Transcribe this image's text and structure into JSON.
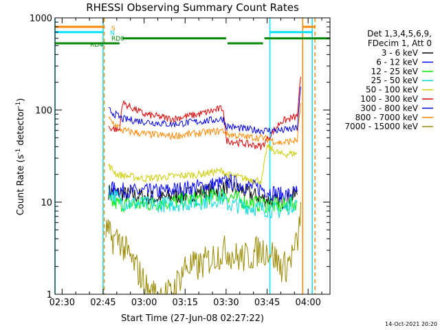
{
  "chart_data": {
    "type": "line",
    "title": "RHESSI Observing Summary Count Rates",
    "xlabel": "Start Time (27-Jun-08 02:27:22)",
    "ylabel": "Count Rate (s",
    "ylabel_sup1": "-1",
    "ylabel_mid": " detector",
    "ylabel_sup2": "-1",
    "ylabel_end": ")",
    "yscale": "log",
    "ylim": [
      1,
      1000
    ],
    "xlim_min": [
      147.4,
      248
    ],
    "x_ticks": [
      {
        "t": 150,
        "label": "02:30"
      },
      {
        "t": 165,
        "label": "02:45"
      },
      {
        "t": 180,
        "label": "03:00"
      },
      {
        "t": 195,
        "label": "03:15"
      },
      {
        "t": 210,
        "label": "03:30"
      },
      {
        "t": 225,
        "label": "03:45"
      },
      {
        "t": 240,
        "label": "04:00"
      }
    ],
    "y_ticks": [
      {
        "v": 1,
        "label": "1"
      },
      {
        "v": 10,
        "label": "10"
      },
      {
        "v": 100,
        "label": "100"
      },
      {
        "v": 1000,
        "label": "1000"
      }
    ],
    "legend_header": [
      "Det 1,3,4,5,6,9,",
      "FDecim 1, Att 0"
    ],
    "legend_position": "right",
    "timestamp": "14-Oct-2021 20:20",
    "series": [
      {
        "name": "3 - 6 keV",
        "color": "#000000",
        "x": [
          167,
          175,
          185,
          195,
          202,
          209,
          210,
          217,
          223,
          230,
          233,
          236
        ],
        "y": [
          13,
          12,
          11,
          12,
          13,
          14,
          15,
          13,
          11,
          10,
          11,
          12
        ]
      },
      {
        "name": "6 - 12 keV",
        "color": "#0000ff",
        "x": [
          167,
          175,
          185,
          195,
          202,
          209,
          210,
          217,
          223,
          230,
          233,
          236
        ],
        "y": [
          14,
          13,
          13,
          14,
          15,
          16,
          17,
          15,
          14,
          12,
          12,
          13
        ]
      },
      {
        "name": "12 - 25 keV",
        "color": "#00ee00",
        "x": [
          167,
          172,
          180,
          190,
          200,
          209,
          210,
          217,
          223,
          230,
          233,
          236
        ],
        "y": [
          10,
          9.5,
          9.5,
          10,
          11,
          12,
          12,
          10,
          9.5,
          9,
          9.5,
          10
        ]
      },
      {
        "name": "25 - 50 keV",
        "color": "#00dddd",
        "x": [
          167,
          172,
          180,
          190,
          200,
          209,
          210,
          217,
          223,
          230,
          233,
          236
        ],
        "y": [
          13,
          10,
          9.5,
          9.5,
          10,
          11,
          9.5,
          9,
          8.5,
          8,
          9,
          10
        ]
      },
      {
        "name": "50 - 100 keV",
        "color": "#cccc00",
        "x": [
          167,
          170,
          180,
          190,
          200,
          209,
          210,
          217,
          223,
          225,
          230,
          236
        ],
        "y": [
          25,
          20,
          18,
          19,
          20,
          22,
          20,
          18,
          17,
          40,
          33,
          34
        ]
      },
      {
        "name": "100 - 300 keV",
        "color": "#dd0000",
        "x": [
          167,
          171,
          172,
          180,
          190,
          200,
          209,
          210,
          217,
          223,
          230,
          236,
          237.3
        ],
        "y": [
          65,
          60,
          120,
          90,
          80,
          90,
          105,
          47,
          43,
          40,
          75,
          85,
          230
        ]
      },
      {
        "name": "300 - 800 keV",
        "color": "#0000dd",
        "x": [
          167,
          172,
          180,
          190,
          200,
          209,
          210,
          217,
          223,
          230,
          236,
          237.3
        ],
        "y": [
          100,
          80,
          75,
          70,
          75,
          80,
          67,
          62,
          60,
          60,
          63,
          180
        ]
      },
      {
        "name": "800 - 7000 keV",
        "color": "#ff8800",
        "x": [
          167,
          172,
          180,
          190,
          200,
          209,
          210,
          217,
          223,
          230,
          236,
          237.3
        ],
        "y": [
          80,
          60,
          55,
          52,
          56,
          60,
          55,
          51,
          50,
          44,
          47,
          120
        ]
      },
      {
        "name": "7000 - 15000 keV",
        "color": "#998800",
        "x": [
          166,
          168,
          171,
          173,
          177,
          182,
          190,
          195,
          200,
          205,
          210,
          214,
          218,
          222,
          226,
          230,
          232,
          235,
          236.5,
          237.3
        ],
        "y": [
          5,
          4,
          4,
          3,
          2,
          1,
          1,
          2,
          2,
          2.5,
          3,
          2.5,
          2.5,
          3,
          3,
          2,
          2,
          3,
          4,
          10
        ]
      }
    ],
    "state_bars": [
      {
        "name": "S",
        "label": "S",
        "color": "#ff8800",
        "v": 800,
        "segments": [
          [
            147.4,
            165.4
          ],
          [
            238,
            242.5
          ]
        ]
      },
      {
        "name": "N",
        "label": "N",
        "color": "#00e0ff",
        "v": 700,
        "segments": [
          [
            147.4,
            165
          ],
          [
            226,
            241.5
          ]
        ]
      },
      {
        "name": "RD0",
        "label": "RD0",
        "color": "#008800",
        "v": 600,
        "segments": [
          [
            172,
            210
          ],
          [
            224,
            248
          ]
        ]
      },
      {
        "name": "RD4",
        "label": "RD4",
        "color": "#008800",
        "v": 530,
        "segments": [
          [
            147.4,
            171
          ],
          [
            210.5,
            223.5
          ]
        ]
      }
    ],
    "state_lines": [
      {
        "t": 147.4,
        "color": "#00e0ff",
        "dashed": false
      },
      {
        "t": 165,
        "color": "#00e0ff",
        "dashed": false
      },
      {
        "t": 165.4,
        "color": "#ff8800",
        "dashed": true
      },
      {
        "t": 226,
        "color": "#00e0ff",
        "dashed": false
      },
      {
        "t": 238,
        "color": "#ff8800",
        "dashed": false
      },
      {
        "t": 241.5,
        "color": "#00e0ff",
        "dashed": false
      },
      {
        "t": 242.5,
        "color": "#ff8800",
        "dashed": true
      }
    ]
  }
}
